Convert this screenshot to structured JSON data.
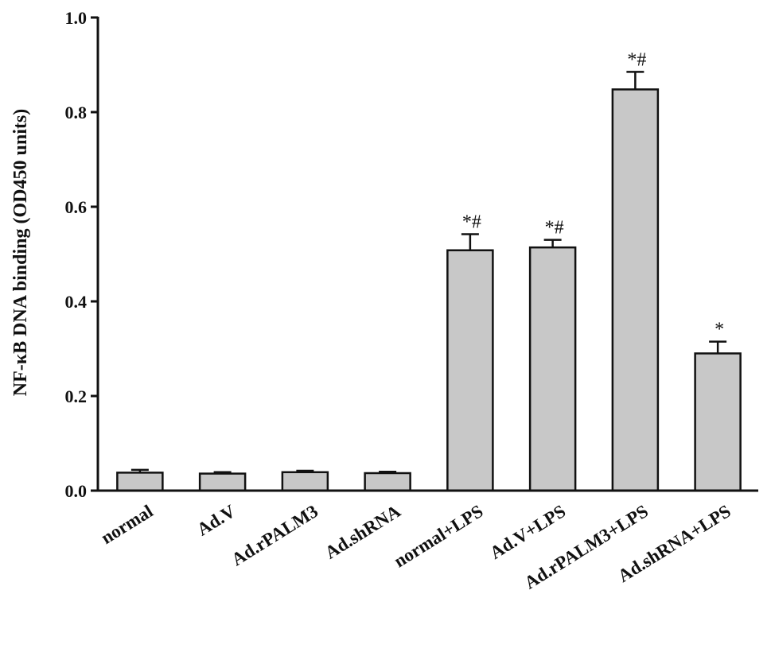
{
  "chart_data": {
    "type": "bar",
    "title": "",
    "xlabel": "",
    "ylabel": "NF-κB DNA binding (OD450 units)",
    "ylim": [
      0,
      1.0
    ],
    "yticks": [
      0.0,
      0.2,
      0.4,
      0.6,
      0.8,
      1.0
    ],
    "ytick_labels": [
      "0.0",
      "0.2",
      "0.4",
      "0.6",
      "0.8",
      "1.0"
    ],
    "categories": [
      "normal",
      "Ad.V",
      "Ad.rPALM3",
      "Ad.shRNA",
      "normal+LPS",
      "Ad.V+LPS",
      "Ad.rPALM3+LPS",
      "Ad.shRNA+LPS"
    ],
    "values": [
      0.038,
      0.036,
      0.039,
      0.037,
      0.508,
      0.514,
      0.848,
      0.29
    ],
    "errors": [
      0.006,
      0.003,
      0.003,
      0.003,
      0.034,
      0.016,
      0.037,
      0.025
    ],
    "annotations": [
      "",
      "",
      "",
      "",
      "*#",
      "*#",
      "*#",
      "*"
    ],
    "bar_color": "#c8c8c8",
    "edge_color": "#111111",
    "grid": false,
    "legend": "none"
  }
}
